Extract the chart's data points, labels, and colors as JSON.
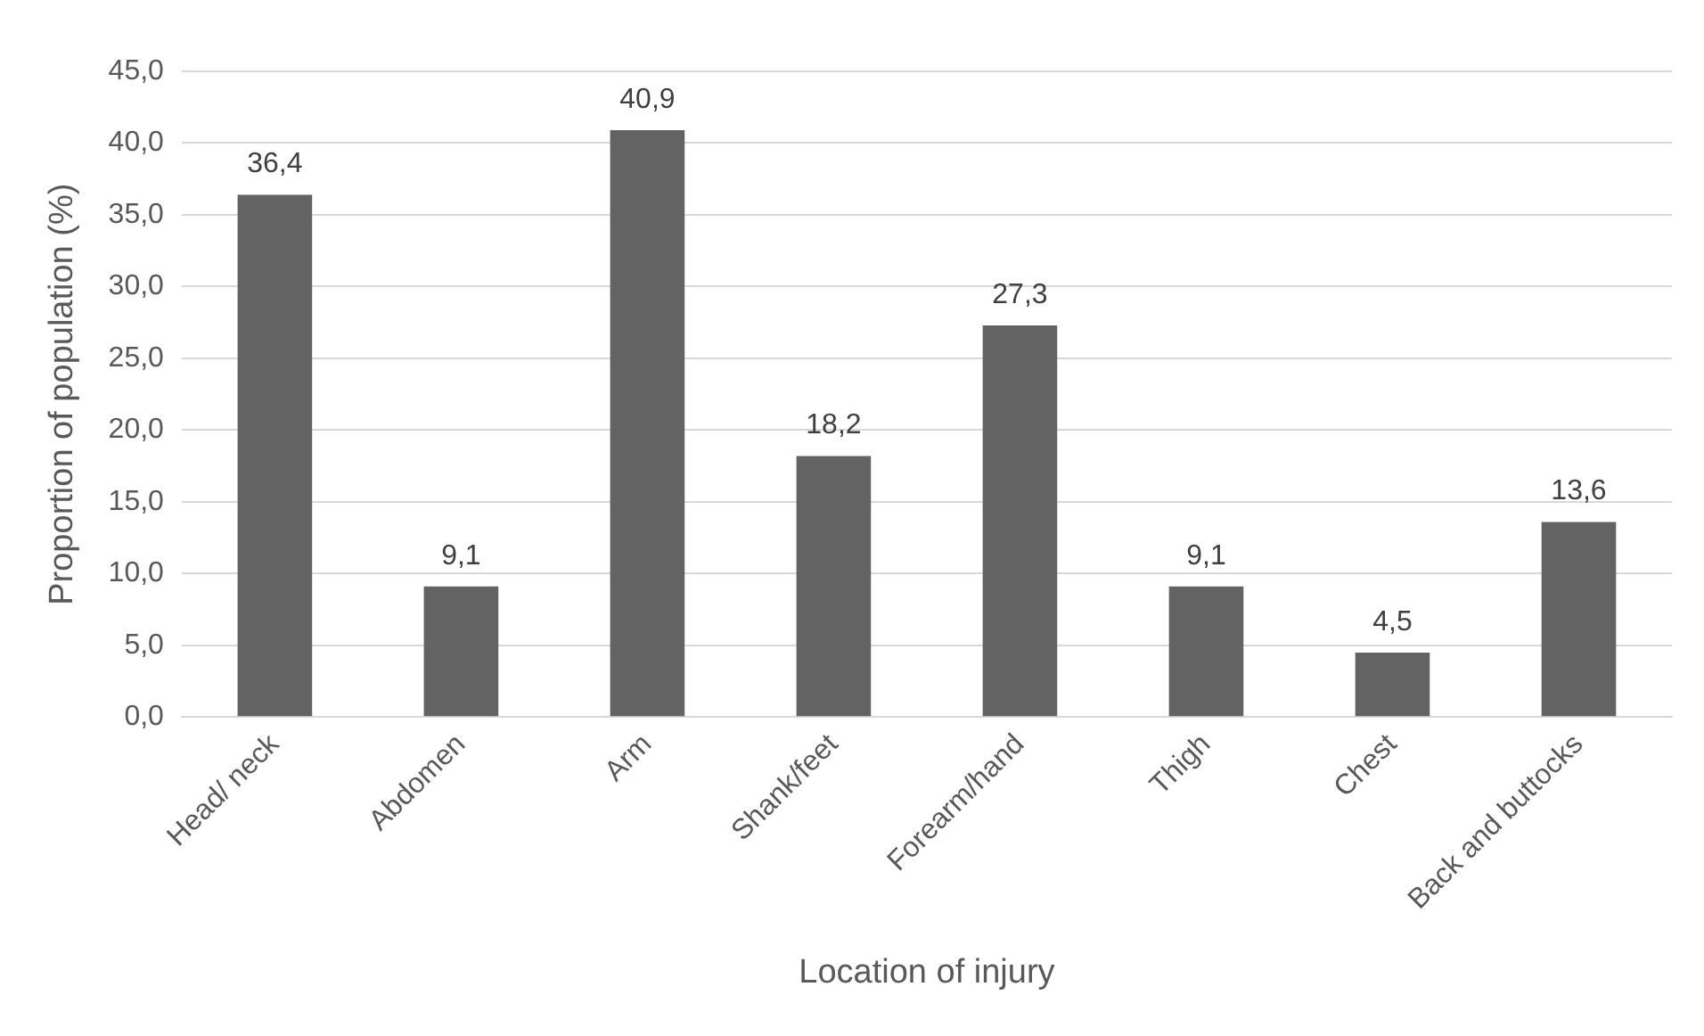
{
  "chart_data": {
    "type": "bar",
    "xlabel": "Location of injury",
    "ylabel": "Proportion of population (%)",
    "categories": [
      "Head/ neck",
      "Abdomen",
      "Arm",
      "Shank/feet",
      "Forearm/hand",
      "Thigh",
      "Chest",
      "Back and buttocks"
    ],
    "values": [
      36.4,
      9.1,
      40.9,
      18.2,
      27.3,
      9.1,
      4.5,
      13.6
    ],
    "value_labels": [
      "36,4",
      "9,1",
      "40,9",
      "18,2",
      "27,3",
      "9,1",
      "4,5",
      "13,6"
    ],
    "color": "#636363",
    "ylim": [
      0,
      45
    ],
    "yticks": [
      {
        "value": 0,
        "label": "0,0"
      },
      {
        "value": 5,
        "label": "5,0"
      },
      {
        "value": 10,
        "label": "10,0"
      },
      {
        "value": 15,
        "label": "15,0"
      },
      {
        "value": 20,
        "label": "20,0"
      },
      {
        "value": 25,
        "label": "25,0"
      },
      {
        "value": 30,
        "label": "30,0"
      },
      {
        "value": 35,
        "label": "35,0"
      },
      {
        "value": 40,
        "label": "40,0"
      },
      {
        "value": 45,
        "label": "45,0"
      }
    ],
    "grid": "y",
    "legend": false
  }
}
